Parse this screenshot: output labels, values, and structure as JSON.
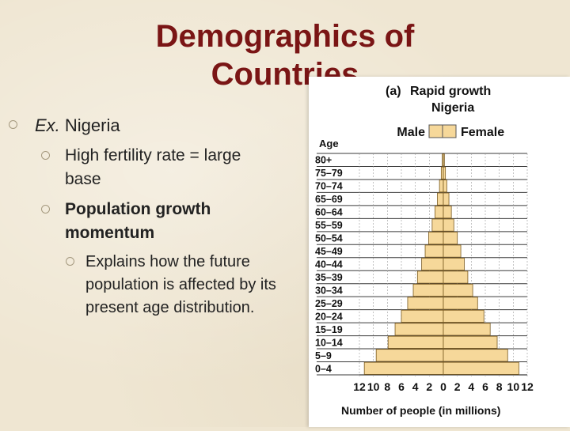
{
  "slide": {
    "title_line1": "Demographics of",
    "title_line2": "Countries"
  },
  "bullets": {
    "l1_prefix": "Ex.",
    "l1_text": " Nigeria",
    "l2a_line1": "High fertility rate = large",
    "l2a_line2": "base",
    "l2b_line1": "Population growth",
    "l2b_line2": "momentum",
    "l3_line1": "Explains how the future",
    "l3_line2": "population is affected by its",
    "l3_line3": "present age distribution."
  },
  "chart_data": {
    "type": "bar",
    "panel_label": "(a)",
    "title_line1": "Rapid growth",
    "title_line2": "Nigeria",
    "legend": [
      "Male",
      "Female"
    ],
    "ylabel": "Age",
    "xlabel": "Number of people (in millions)",
    "x_ticks": [
      "12",
      "10",
      "8",
      "6",
      "4",
      "2",
      "0",
      "2",
      "4",
      "6",
      "8",
      "10",
      "12"
    ],
    "xlim": [
      -12,
      12
    ],
    "categories": [
      "0–4",
      "5–9",
      "10–14",
      "15–19",
      "20–24",
      "25–29",
      "30–34",
      "35–39",
      "40–44",
      "45–49",
      "50–54",
      "55–59",
      "60–64",
      "65–69",
      "70–74",
      "75–79",
      "80+"
    ],
    "series": [
      {
        "name": "Male",
        "values": [
          11.3,
          9.6,
          7.9,
          6.9,
          6.0,
          5.1,
          4.3,
          3.7,
          3.1,
          2.6,
          2.1,
          1.6,
          1.2,
          0.85,
          0.55,
          0.3,
          0.15
        ]
      },
      {
        "name": "Female",
        "values": [
          10.8,
          9.2,
          7.7,
          6.7,
          5.8,
          4.9,
          4.2,
          3.5,
          3.0,
          2.5,
          2.0,
          1.5,
          1.15,
          0.8,
          0.5,
          0.3,
          0.15
        ]
      }
    ],
    "colors": {
      "bar": "#f6d89a",
      "bar_stroke": "#7a5a20",
      "grid": "#3a3a3a"
    }
  }
}
